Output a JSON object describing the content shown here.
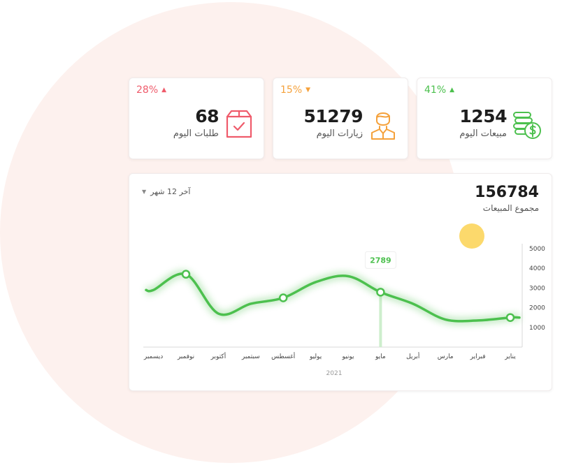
{
  "stats": [
    {
      "value": "68",
      "label": "طلبات اليوم",
      "change": "28%",
      "direction": "up",
      "change_color": "#ef5b6b",
      "icon": "package-box-icon",
      "icon_color": "#ef5b6b"
    },
    {
      "value": "51279",
      "label": "زيارات اليوم",
      "change": "15%",
      "direction": "down",
      "change_color": "#f5a13b",
      "icon": "user-visitor-icon",
      "icon_color": "#f5a13b"
    },
    {
      "value": "1254",
      "label": "مبيعات اليوم",
      "change": "41%",
      "direction": "up",
      "change_color": "#4cc04e",
      "icon": "dollar-coins-icon",
      "icon_color": "#4cc04e"
    }
  ],
  "sales_chart": {
    "total": "156784",
    "total_label": "مجموع المبيعات",
    "period_label": "آخر 12 شهر",
    "highlight_label": "2789",
    "highlight_month": "مايو",
    "year": "2021",
    "line_color": "#4cc04e"
  },
  "chart_data": {
    "type": "line",
    "categories": [
      "يناير",
      "فبراير",
      "مارس",
      "أبريل",
      "مايو",
      "يونيو",
      "يوليو",
      "أغسطس",
      "سبتمبر",
      "أكتوبر",
      "نوفمبر",
      "ديسمبر"
    ],
    "x_direction": "right-to-left",
    "values": [
      1500,
      1350,
      1400,
      2200,
      2789,
      3600,
      3300,
      2500,
      2200,
      1700,
      3700,
      2900
    ],
    "markers": [
      "يناير",
      "مايو",
      "أغسطس",
      "نوفمبر"
    ],
    "ylim": [
      0,
      5000
    ],
    "yticks": [
      1000,
      2000,
      3000,
      4000,
      5000
    ],
    "xlabel": "2021",
    "ylabel": "",
    "grid": false
  }
}
